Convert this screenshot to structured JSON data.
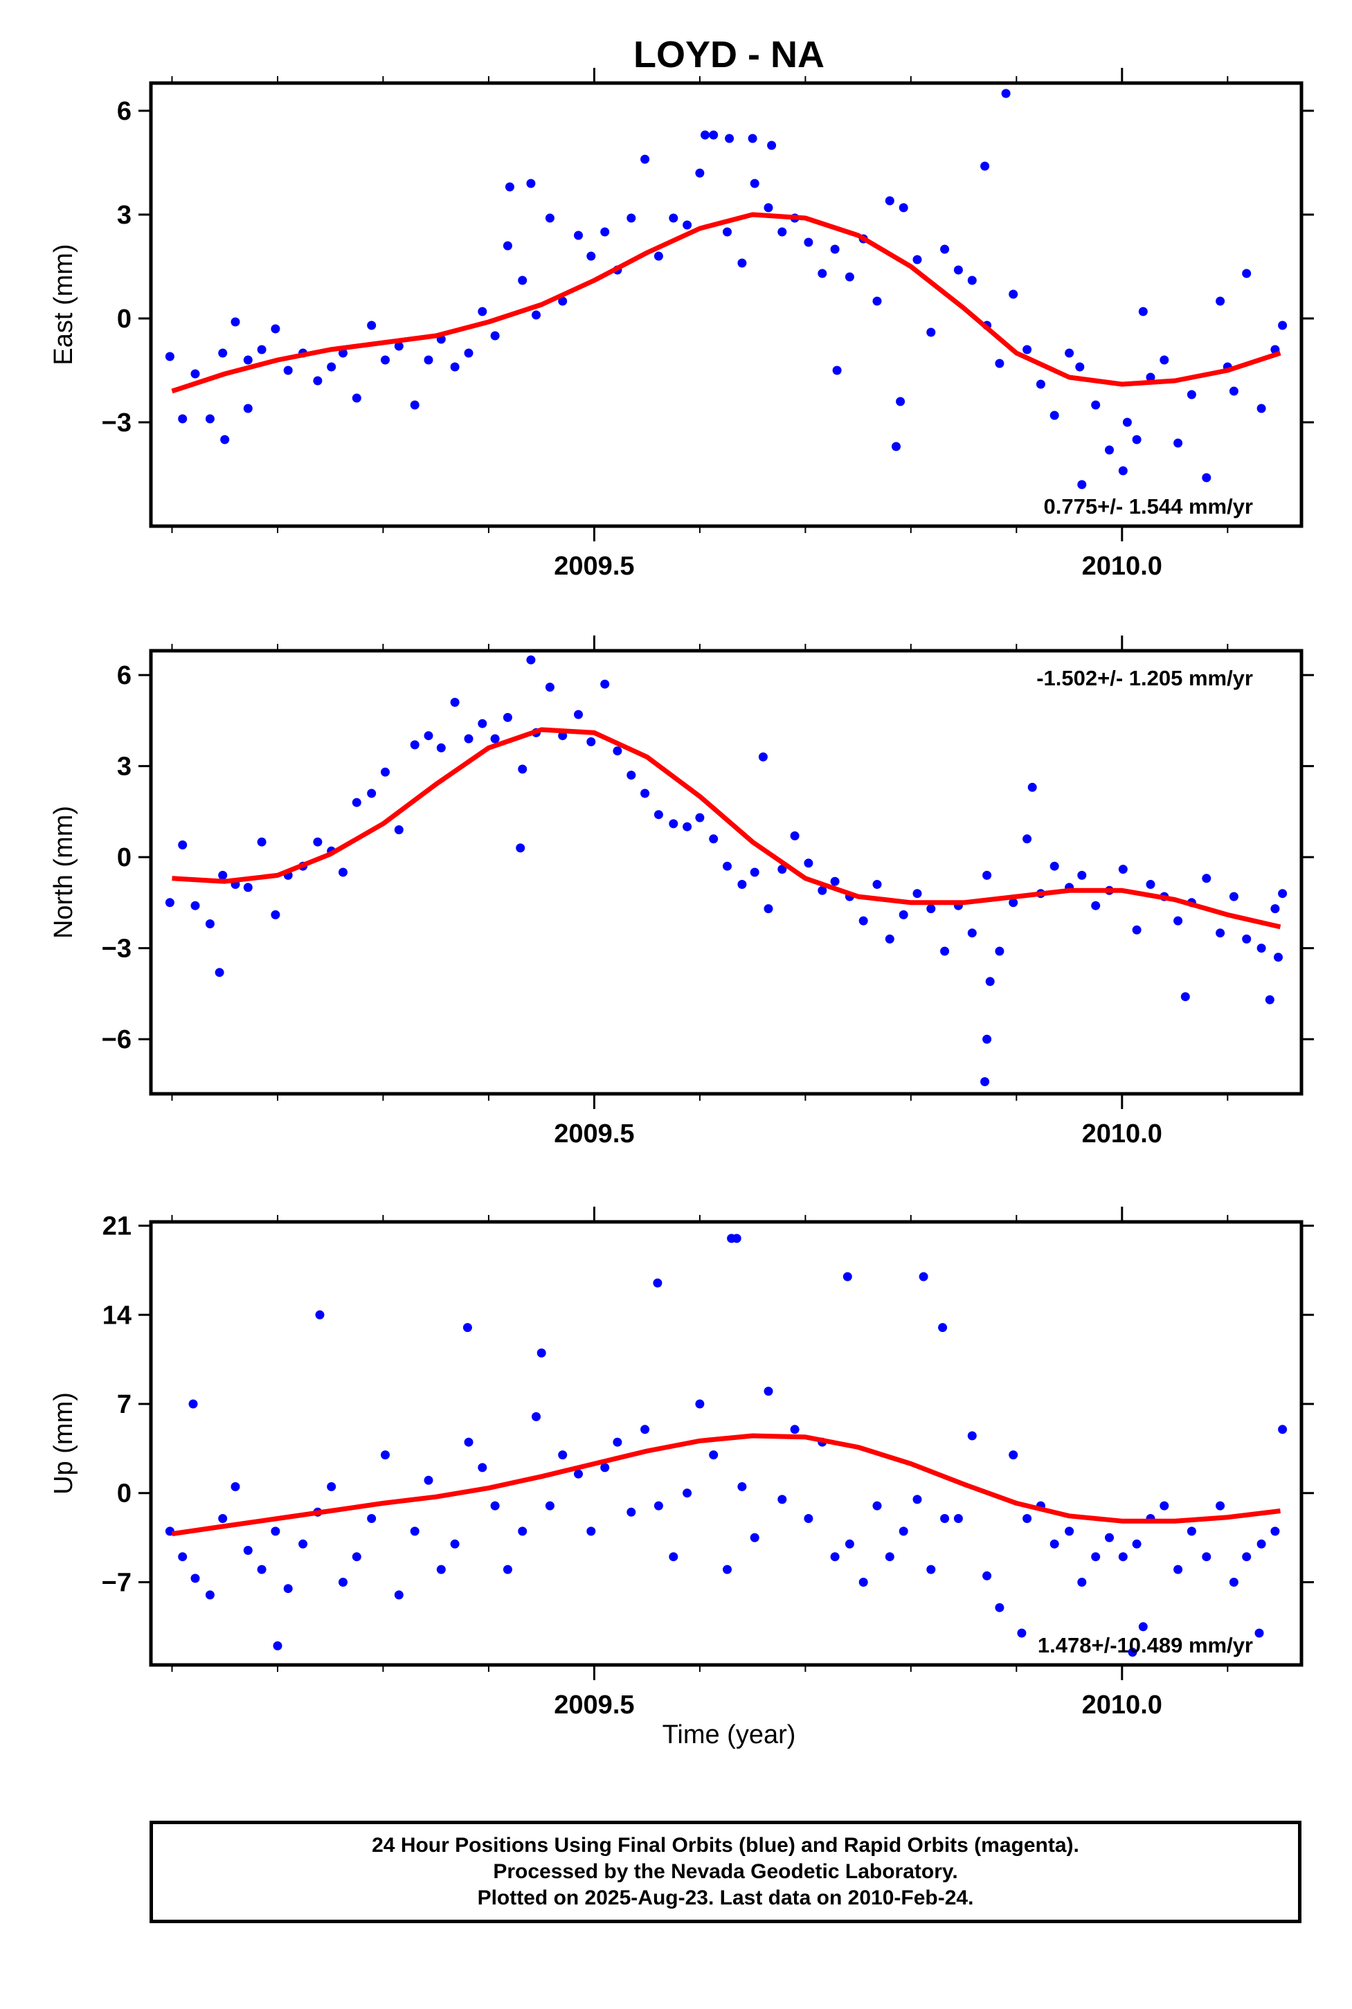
{
  "title": "LOYD - NA",
  "xlabel": "Time (year)",
  "colors": {
    "points": "#0000ff",
    "fit": "#ff0000",
    "frame": "#000000"
  },
  "footer": {
    "line1": "24 Hour Positions Using Final Orbits (blue) and Rapid Orbits (magenta).",
    "line2": "Processed by the Nevada Geodetic Laboratory.",
    "line3": "Plotted on 2025-Aug-23. Last data on 2010-Feb-24."
  },
  "chart_data": [
    {
      "type": "scatter",
      "ylabel": "East (mm)",
      "xlim": [
        2009.08,
        2010.17
      ],
      "ylim": [
        -6.0,
        6.8
      ],
      "xticks": [
        2009.5,
        2010.0
      ],
      "xtick_labels": [
        "2009.5",
        "2010.0"
      ],
      "yticks": [
        -3,
        0,
        3,
        6
      ],
      "ytick_labels": [
        "−3",
        "0",
        "3",
        "6"
      ],
      "rate_label": "0.775+/- 1.544 mm/yr",
      "rate_position": "bottom-right",
      "series": [
        {
          "kind": "points",
          "x": [
            2009.098,
            2009.11,
            2009.122,
            2009.136,
            2009.148,
            2009.16,
            2009.172,
            2009.185,
            2009.198,
            2009.21,
            2009.224,
            2009.238,
            2009.251,
            2009.262,
            2009.275,
            2009.289,
            2009.302,
            2009.315,
            2009.33,
            2009.343,
            2009.355,
            2009.368,
            2009.381,
            2009.394,
            2009.406,
            2009.418,
            2009.432,
            2009.445,
            2009.458,
            2009.47,
            2009.485,
            2009.497,
            2009.51,
            2009.522,
            2009.535,
            2009.548,
            2009.561,
            2009.575,
            2009.588,
            2009.6,
            2009.613,
            2009.626,
            2009.64,
            2009.652,
            2009.665,
            2009.678,
            2009.69,
            2009.703,
            2009.716,
            2009.728,
            2009.742,
            2009.755,
            2009.768,
            2009.78,
            2009.793,
            2009.806,
            2009.819,
            2009.832,
            2009.845,
            2009.858,
            2009.872,
            2009.884,
            2009.897,
            2009.91,
            2009.923,
            2009.936,
            2009.95,
            2009.962,
            2009.975,
            2009.988,
            2010.001,
            2010.014,
            2010.027,
            2010.04,
            2010.053,
            2010.066,
            2010.08,
            2010.093,
            2010.106,
            2010.118,
            2010.132,
            2010.145,
            2010.152,
            2009.42,
            2009.44,
            2009.605,
            2009.628,
            2009.65,
            2009.668,
            2009.73,
            2009.786,
            2009.79,
            2009.87,
            2009.89,
            2009.96,
            2010.005,
            2010.02,
            2010.1,
            2009.15,
            2009.172
          ],
          "y": [
            -1.1,
            -2.9,
            -1.6,
            -2.9,
            -1.0,
            -0.1,
            -1.2,
            -0.9,
            -0.3,
            -1.5,
            -1.0,
            -1.8,
            -1.4,
            -1.0,
            -2.3,
            -0.2,
            -1.2,
            -0.8,
            -2.5,
            -1.2,
            -0.6,
            -1.4,
            -1.0,
            0.2,
            -0.5,
            2.1,
            1.1,
            0.1,
            2.9,
            0.5,
            2.4,
            1.8,
            2.5,
            1.4,
            2.9,
            4.6,
            1.8,
            2.9,
            2.7,
            4.2,
            5.3,
            2.5,
            1.6,
            3.9,
            3.2,
            2.5,
            2.9,
            2.2,
            1.3,
            2.0,
            1.2,
            2.3,
            0.5,
            3.4,
            3.2,
            1.7,
            -0.4,
            2.0,
            1.4,
            1.1,
            -0.2,
            -1.3,
            0.7,
            -0.9,
            -1.9,
            -2.8,
            -1.0,
            -4.8,
            -2.5,
            -3.8,
            -4.4,
            -3.5,
            -1.7,
            -1.2,
            -3.6,
            -2.2,
            -4.6,
            0.5,
            -2.1,
            1.3,
            -2.6,
            -0.9,
            -0.2,
            3.8,
            3.9,
            5.3,
            5.2,
            5.2,
            5.0,
            -1.5,
            -3.7,
            -2.4,
            4.4,
            6.5,
            -1.4,
            -3.0,
            0.2,
            -1.4,
            -3.5,
            -2.6
          ]
        },
        {
          "kind": "fit",
          "x": [
            2009.1,
            2009.15,
            2009.2,
            2009.25,
            2009.3,
            2009.35,
            2009.4,
            2009.45,
            2009.5,
            2009.55,
            2009.6,
            2009.65,
            2009.7,
            2009.75,
            2009.8,
            2009.85,
            2009.9,
            2009.95,
            2010.0,
            2010.05,
            2010.1,
            2010.15
          ],
          "y": [
            -2.1,
            -1.6,
            -1.2,
            -0.9,
            -0.7,
            -0.5,
            -0.1,
            0.4,
            1.1,
            1.9,
            2.6,
            3.0,
            2.9,
            2.4,
            1.5,
            0.3,
            -1.0,
            -1.7,
            -1.9,
            -1.8,
            -1.5,
            -1.0
          ]
        }
      ]
    },
    {
      "type": "scatter",
      "ylabel": "North (mm)",
      "xlim": [
        2009.08,
        2010.17
      ],
      "ylim": [
        -7.8,
        6.8
      ],
      "xticks": [
        2009.5,
        2010.0
      ],
      "xtick_labels": [
        "2009.5",
        "2010.0"
      ],
      "yticks": [
        -6,
        -3,
        0,
        3,
        6
      ],
      "ytick_labels": [
        "−6",
        "−3",
        "0",
        "3",
        "6"
      ],
      "rate_label": "-1.502+/- 1.205 mm/yr",
      "rate_position": "top-right",
      "series": [
        {
          "kind": "points",
          "x": [
            2009.098,
            2009.11,
            2009.122,
            2009.136,
            2009.148,
            2009.16,
            2009.172,
            2009.185,
            2009.198,
            2009.21,
            2009.224,
            2009.238,
            2009.251,
            2009.262,
            2009.275,
            2009.289,
            2009.302,
            2009.315,
            2009.33,
            2009.343,
            2009.355,
            2009.368,
            2009.381,
            2009.394,
            2009.406,
            2009.418,
            2009.432,
            2009.445,
            2009.458,
            2009.47,
            2009.485,
            2009.497,
            2009.51,
            2009.522,
            2009.535,
            2009.548,
            2009.561,
            2009.575,
            2009.588,
            2009.6,
            2009.613,
            2009.626,
            2009.64,
            2009.652,
            2009.665,
            2009.678,
            2009.69,
            2009.703,
            2009.716,
            2009.728,
            2009.742,
            2009.755,
            2009.768,
            2009.78,
            2009.793,
            2009.806,
            2009.819,
            2009.832,
            2009.845,
            2009.858,
            2009.872,
            2009.884,
            2009.897,
            2009.91,
            2009.923,
            2009.936,
            2009.95,
            2009.962,
            2009.975,
            2009.988,
            2010.001,
            2010.014,
            2010.027,
            2010.04,
            2010.053,
            2010.066,
            2010.08,
            2010.093,
            2010.106,
            2010.118,
            2010.132,
            2010.145,
            2010.152,
            2009.145,
            2009.43,
            2009.44,
            2009.66,
            2009.87,
            2009.872,
            2009.875,
            2009.915,
            2010.06,
            2010.14,
            2010.148
          ],
          "y": [
            -1.5,
            0.4,
            -1.6,
            -2.2,
            -0.6,
            -0.9,
            -1.0,
            0.5,
            -1.9,
            -0.6,
            -0.3,
            0.5,
            0.2,
            -0.5,
            1.8,
            2.1,
            2.8,
            0.9,
            3.7,
            4.0,
            3.6,
            5.1,
            3.9,
            4.4,
            3.9,
            4.6,
            2.9,
            4.1,
            5.6,
            4.0,
            4.7,
            3.8,
            5.7,
            3.5,
            2.7,
            2.1,
            1.4,
            1.1,
            1.0,
            1.3,
            0.6,
            -0.3,
            -0.9,
            -0.5,
            -1.7,
            -0.4,
            0.7,
            -0.2,
            -1.1,
            -0.8,
            -1.3,
            -2.1,
            -0.9,
            -2.7,
            -1.9,
            -1.2,
            -1.7,
            -3.1,
            -1.6,
            -2.5,
            -0.6,
            -3.1,
            -1.5,
            0.6,
            -1.2,
            -0.3,
            -1.0,
            -0.6,
            -1.6,
            -1.1,
            -0.4,
            -2.4,
            -0.9,
            -1.3,
            -2.1,
            -1.5,
            -0.7,
            -2.5,
            -1.3,
            -2.7,
            -3.0,
            -1.7,
            -1.2,
            -3.8,
            0.3,
            6.5,
            3.3,
            -7.4,
            -6.0,
            -4.1,
            2.3,
            -4.6,
            -4.7,
            -3.3
          ]
        },
        {
          "kind": "fit",
          "x": [
            2009.1,
            2009.15,
            2009.2,
            2009.25,
            2009.3,
            2009.35,
            2009.4,
            2009.45,
            2009.5,
            2009.55,
            2009.6,
            2009.65,
            2009.7,
            2009.75,
            2009.8,
            2009.85,
            2009.9,
            2009.95,
            2010.0,
            2010.05,
            2010.1,
            2010.15
          ],
          "y": [
            -0.7,
            -0.8,
            -0.6,
            0.1,
            1.1,
            2.4,
            3.6,
            4.2,
            4.1,
            3.3,
            2.0,
            0.5,
            -0.7,
            -1.3,
            -1.5,
            -1.5,
            -1.3,
            -1.1,
            -1.1,
            -1.4,
            -1.9,
            -2.3
          ]
        }
      ]
    },
    {
      "type": "scatter",
      "ylabel": "Up (mm)",
      "xlim": [
        2009.08,
        2010.17
      ],
      "ylim": [
        -13.5,
        21.3
      ],
      "xticks": [
        2009.5,
        2010.0
      ],
      "xtick_labels": [
        "2009.5",
        "2010.0"
      ],
      "yticks": [
        -7,
        0,
        7,
        14,
        21
      ],
      "ytick_labels": [
        "−7",
        "0",
        "7",
        "14",
        "21"
      ],
      "rate_label": "1.478+/-10.489 mm/yr",
      "rate_position": "bottom-right",
      "series": [
        {
          "kind": "points",
          "x": [
            2009.098,
            2009.11,
            2009.122,
            2009.136,
            2009.148,
            2009.16,
            2009.172,
            2009.185,
            2009.198,
            2009.21,
            2009.224,
            2009.238,
            2009.251,
            2009.262,
            2009.275,
            2009.289,
            2009.302,
            2009.315,
            2009.33,
            2009.343,
            2009.355,
            2009.368,
            2009.381,
            2009.394,
            2009.406,
            2009.418,
            2009.432,
            2009.445,
            2009.458,
            2009.47,
            2009.485,
            2009.497,
            2009.51,
            2009.522,
            2009.535,
            2009.548,
            2009.561,
            2009.575,
            2009.588,
            2009.6,
            2009.613,
            2009.626,
            2009.64,
            2009.652,
            2009.665,
            2009.678,
            2009.69,
            2009.703,
            2009.716,
            2009.728,
            2009.742,
            2009.755,
            2009.768,
            2009.78,
            2009.793,
            2009.806,
            2009.819,
            2009.832,
            2009.845,
            2009.858,
            2009.872,
            2009.884,
            2009.897,
            2009.91,
            2009.923,
            2009.936,
            2009.95,
            2009.962,
            2009.975,
            2009.988,
            2010.001,
            2010.014,
            2010.027,
            2010.04,
            2010.053,
            2010.066,
            2010.08,
            2010.093,
            2010.106,
            2010.118,
            2010.132,
            2010.145,
            2010.152,
            2009.12,
            2009.24,
            2009.38,
            2009.45,
            2009.56,
            2009.63,
            2009.635,
            2009.74,
            2009.812,
            2009.83,
            2009.905,
            2010.01,
            2010.13,
            2009.2,
            2010.02
          ],
          "y": [
            -3.0,
            -5.0,
            -6.7,
            -8.0,
            -2.0,
            0.5,
            -4.5,
            -6.0,
            -3.0,
            -7.5,
            -4.0,
            -1.5,
            0.5,
            -7.0,
            -5.0,
            -2.0,
            3.0,
            -8.0,
            -3.0,
            1.0,
            -6.0,
            -4.0,
            4.0,
            2.0,
            -1.0,
            -6.0,
            -3.0,
            6.0,
            -1.0,
            3.0,
            1.5,
            -3.0,
            2.0,
            4.0,
            -1.5,
            5.0,
            -1.0,
            -5.0,
            0.0,
            7.0,
            3.0,
            -6.0,
            0.5,
            -3.5,
            8.0,
            -0.5,
            5.0,
            -2.0,
            4.0,
            -5.0,
            -4.0,
            -7.0,
            -1.0,
            -5.0,
            -3.0,
            -0.5,
            -6.0,
            -2.0,
            -2.0,
            4.5,
            -6.5,
            -9.0,
            3.0,
            -2.0,
            -1.0,
            -4.0,
            -3.0,
            -7.0,
            -5.0,
            -3.5,
            -5.0,
            -4.0,
            -2.0,
            -1.0,
            -6.0,
            -3.0,
            -5.0,
            -1.0,
            -7.0,
            -5.0,
            -4.0,
            -3.0,
            5.0,
            7.0,
            14.0,
            13.0,
            11.0,
            16.5,
            20.0,
            20.0,
            17.0,
            17.0,
            13.0,
            -11.0,
            -12.5,
            -11.0,
            -12.0,
            -10.5
          ]
        },
        {
          "kind": "fit",
          "x": [
            2009.1,
            2009.15,
            2009.2,
            2009.25,
            2009.3,
            2009.35,
            2009.4,
            2009.45,
            2009.5,
            2009.55,
            2009.6,
            2009.65,
            2009.7,
            2009.75,
            2009.8,
            2009.85,
            2009.9,
            2009.95,
            2010.0,
            2010.05,
            2010.1,
            2010.15
          ],
          "y": [
            -3.2,
            -2.6,
            -2.0,
            -1.4,
            -0.8,
            -0.3,
            0.4,
            1.3,
            2.3,
            3.3,
            4.1,
            4.5,
            4.4,
            3.6,
            2.3,
            0.7,
            -0.8,
            -1.8,
            -2.2,
            -2.2,
            -1.9,
            -1.4
          ]
        }
      ]
    }
  ]
}
